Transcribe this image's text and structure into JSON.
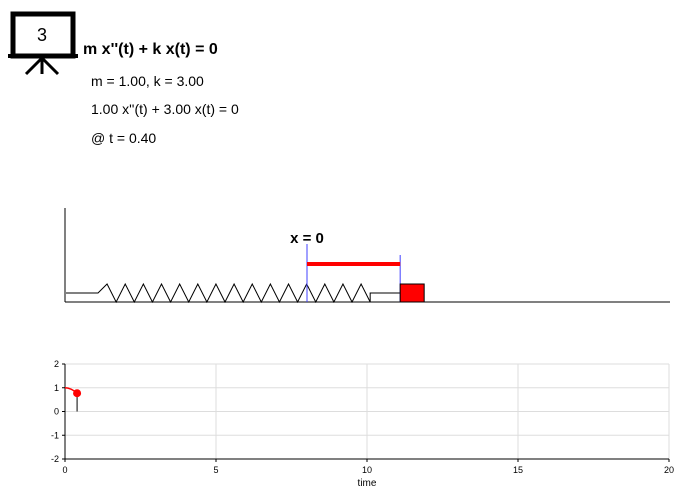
{
  "logo": {
    "number": "3",
    "icon": "presentation-board-icon"
  },
  "header": {
    "equation": "m x''(t) + k x(t) = 0",
    "params": "m = 1.00, k = 3.00",
    "numeric_equation": "1.00 x''(t) + 3.00 x(t) = 0",
    "time_label": "@ t = 0.40"
  },
  "spring": {
    "equilibrium_label": "x = 0",
    "displacement": 0.77,
    "colors": {
      "block": "#ff0000",
      "displacement_bar": "#ff0000",
      "markers": "#4040ff",
      "spring": "#000000"
    }
  },
  "chart_data": {
    "type": "line",
    "title": "",
    "xlabel": "time",
    "ylabel": "",
    "xlim": [
      0,
      20
    ],
    "ylim": [
      -2,
      2
    ],
    "xticks": [
      "0",
      "5",
      "10",
      "15",
      "20"
    ],
    "yticks": [
      "2",
      "1",
      "0",
      "-1",
      "-2"
    ],
    "grid": true,
    "series": [
      {
        "color": "#ff0000",
        "x": [
          0,
          0.1,
          0.2,
          0.3,
          0.4
        ],
        "y": [
          1.0,
          0.985,
          0.941,
          0.869,
          0.77
        ]
      }
    ],
    "current_point": {
      "x": 0.4,
      "y": 0.77
    }
  }
}
